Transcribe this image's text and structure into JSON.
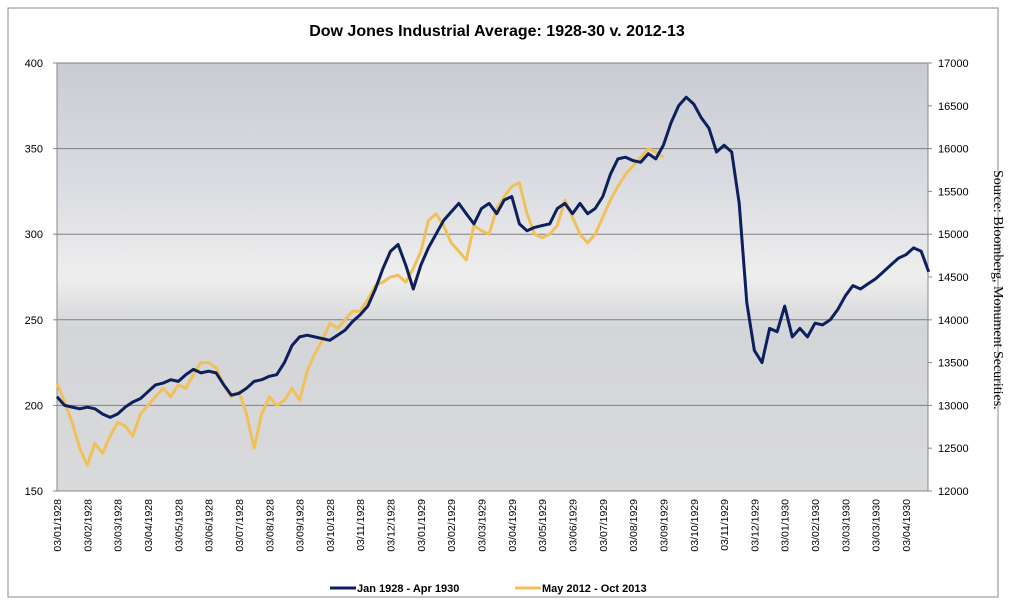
{
  "chart_data": {
    "type": "line",
    "title": "Dow Jones Industrial Average: 1928-30 v. 2012-13",
    "source": "Source: Bloomberg, Monument Securities.",
    "categories": [
      "03/01/1928",
      null,
      null,
      null,
      "03/02/1928",
      null,
      null,
      null,
      "03/03/1928",
      null,
      null,
      null,
      "03/04/1928",
      null,
      null,
      null,
      "03/05/1928",
      null,
      null,
      null,
      "03/06/1928",
      null,
      null,
      null,
      "03/07/1928",
      null,
      null,
      null,
      "03/08/1928",
      null,
      null,
      null,
      "03/09/1928",
      null,
      null,
      null,
      "03/10/1928",
      null,
      null,
      null,
      "03/11/1928",
      null,
      null,
      null,
      "03/12/1928",
      null,
      null,
      null,
      "03/01/1929",
      null,
      null,
      null,
      "03/02/1929",
      null,
      null,
      null,
      "03/03/1929",
      null,
      null,
      null,
      "03/04/1929",
      null,
      null,
      null,
      "03/05/1929",
      null,
      null,
      null,
      "03/06/1929",
      null,
      null,
      null,
      "03/07/1929",
      null,
      null,
      null,
      "03/08/1929",
      null,
      null,
      null,
      "03/09/1929",
      null,
      null,
      null,
      "03/10/1929",
      null,
      null,
      null,
      "03/11/1929",
      null,
      null,
      null,
      "03/12/1929",
      null,
      null,
      null,
      "03/01/1930",
      null,
      null,
      null,
      "03/02/1930",
      null,
      null,
      null,
      "03/03/1930",
      null,
      null,
      null,
      "03/03/1930",
      null,
      null,
      null,
      "03/04/1930",
      null,
      null,
      null
    ],
    "series": [
      {
        "name": "Jan 1928 - Apr 1930",
        "color": "#0d1f5c",
        "axis": "y",
        "values": [
          205,
          200,
          199,
          198,
          199,
          198,
          195,
          193,
          195,
          199,
          202,
          204,
          208,
          212,
          213,
          215,
          214,
          218,
          221,
          219,
          220,
          219,
          212,
          206,
          207,
          210,
          214,
          215,
          217,
          218,
          225,
          235,
          240,
          241,
          240,
          239,
          238,
          241,
          244,
          249,
          253,
          258,
          268,
          280,
          290,
          294,
          282,
          268,
          282,
          292,
          300,
          308,
          313,
          318,
          312,
          306,
          315,
          318,
          312,
          320,
          322,
          306,
          302,
          304,
          305,
          306,
          315,
          318,
          312,
          318,
          312,
          315,
          322,
          335,
          344,
          345,
          343,
          342,
          347,
          344,
          352,
          365,
          375,
          380,
          376,
          368,
          362,
          348,
          352,
          348,
          318,
          260,
          232,
          225,
          245,
          243,
          258,
          240,
          245,
          240,
          248,
          247,
          250,
          256,
          264,
          270,
          268,
          271,
          274,
          278,
          282,
          286,
          288,
          292,
          290,
          278
        ]
      },
      {
        "name": "May 2012 - Oct 2013",
        "color": "#f0c15a",
        "axis": "y2",
        "values": [
          13260,
          13040,
          12800,
          12500,
          12300,
          12560,
          12440,
          12640,
          12800,
          12760,
          12640,
          12900,
          13000,
          13100,
          13200,
          13100,
          13240,
          13200,
          13360,
          13500,
          13500,
          13440,
          13240,
          13100,
          13160,
          12900,
          12500,
          12900,
          13100,
          13000,
          13060,
          13200,
          13060,
          13400,
          13600,
          13760,
          13960,
          13900,
          14000,
          14100,
          14100,
          14240,
          14400,
          14440,
          14500,
          14520,
          14440,
          14600,
          14800,
          15160,
          15240,
          15100,
          14900,
          14800,
          14700,
          15100,
          15040,
          15000,
          15300,
          15440,
          15560,
          15600,
          15240,
          15000,
          14960,
          15000,
          15100,
          15400,
          15200,
          15000,
          14900,
          15000,
          15200,
          15400,
          15560,
          15700,
          15800,
          15900,
          16000,
          15960,
          15900,
          null,
          null,
          null,
          null,
          null,
          null,
          null,
          null,
          null,
          null,
          null,
          null,
          null,
          null,
          null,
          null,
          null,
          null,
          null,
          null,
          null,
          null,
          null,
          null,
          null,
          null,
          null,
          null,
          null,
          null,
          null,
          null,
          null,
          null,
          null
        ]
      }
    ],
    "ylim": [
      150,
      400
    ],
    "yticks": [
      150,
      200,
      250,
      300,
      350,
      400
    ],
    "y2lim": [
      12000,
      17000
    ],
    "y2ticks": [
      12000,
      12500,
      13000,
      13500,
      14000,
      14500,
      15000,
      15500,
      16000,
      16500,
      17000
    ],
    "grid": true,
    "legend": "bottom"
  }
}
